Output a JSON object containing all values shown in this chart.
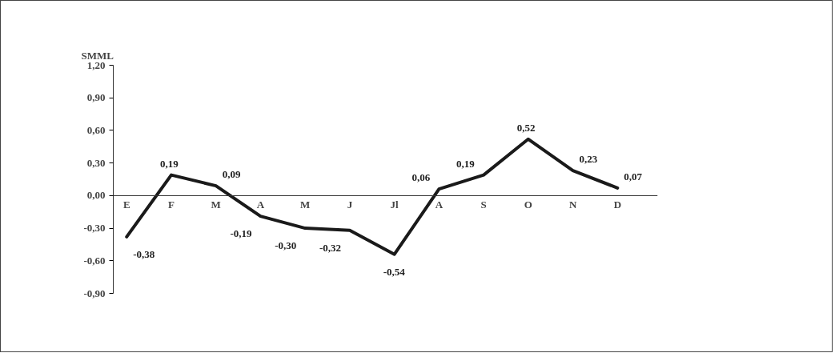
{
  "chart_data": {
    "type": "line",
    "ylabel": "SMML",
    "categories": [
      "E",
      "F",
      "M",
      "A",
      "M",
      "J",
      "Jl",
      "A",
      "S",
      "O",
      "N",
      "D"
    ],
    "values": [
      -0.38,
      0.19,
      0.09,
      -0.19,
      -0.3,
      -0.32,
      -0.54,
      0.06,
      0.19,
      0.52,
      0.23,
      0.07
    ],
    "color": "#1a1a1a",
    "ylim": [
      -0.9,
      1.2
    ],
    "yticks": [
      {
        "value": -0.9,
        "label": "-0,90"
      },
      {
        "value": -0.6,
        "label": "-0,60"
      },
      {
        "value": -0.3,
        "label": "-0,30"
      },
      {
        "value": 0,
        "label": "0,00"
      },
      {
        "value": 0.3,
        "label": "0,30"
      },
      {
        "value": 0.6,
        "label": "0,60"
      },
      {
        "value": 0.9,
        "label": "0,90"
      },
      {
        "value": 1.2,
        "label": "1,20"
      }
    ],
    "value_labels": [
      "-0,38",
      "0,19",
      "0,09",
      "-0,19",
      "-0,30",
      "-0,32",
      "-0,54",
      "0,06",
      "0,19",
      "0,52",
      "0,23",
      "0,07"
    ],
    "grid": false,
    "marker": "none",
    "line_style": "solid"
  }
}
